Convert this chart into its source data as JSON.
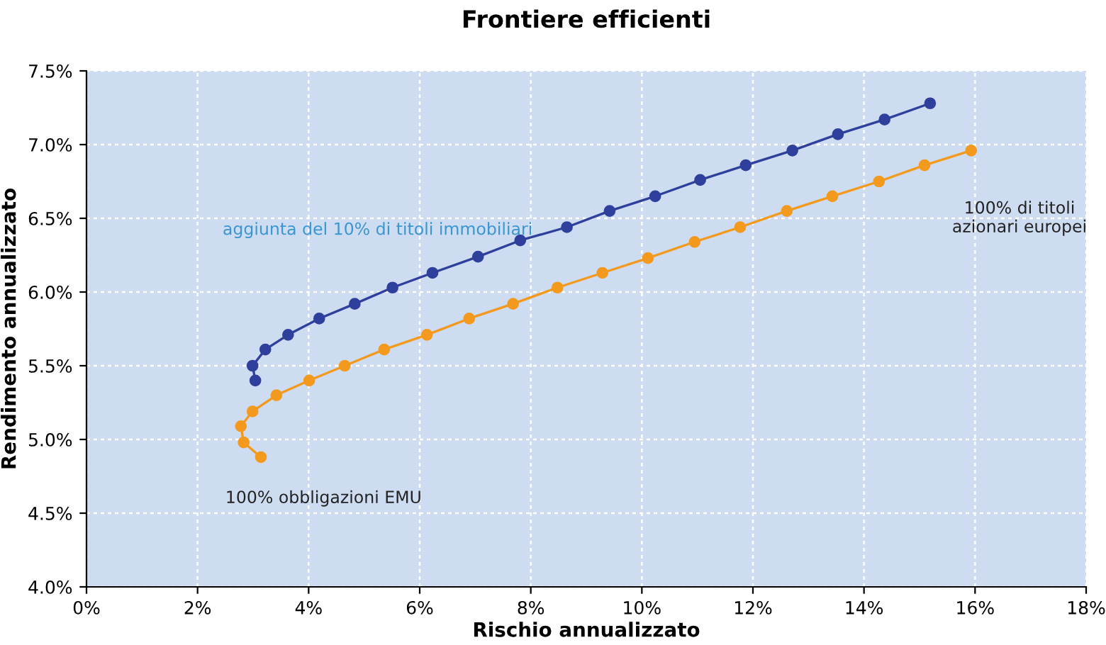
{
  "chart_data": {
    "type": "line",
    "title": "Frontiere efficienti",
    "xlabel": "Rischio annualizzato",
    "ylabel": "Rendimento annualizzato",
    "xlim": [
      0,
      18
    ],
    "xticks": [
      {
        "value": 0,
        "label": "0%"
      },
      {
        "value": 2,
        "label": "2%"
      },
      {
        "value": 4,
        "label": "4%"
      },
      {
        "value": 6,
        "label": "6%"
      },
      {
        "value": 8,
        "label": "8%"
      },
      {
        "value": 10,
        "label": "10%"
      },
      {
        "value": 12,
        "label": "12%"
      },
      {
        "value": 14,
        "label": "14%"
      },
      {
        "value": 16,
        "label": "16%"
      },
      {
        "value": 18,
        "label": "18%"
      }
    ],
    "ylim": [
      4,
      7.5
    ],
    "yticks": [
      {
        "value": 4,
        "label": "4.0%"
      },
      {
        "value": 4.5,
        "label": "4.5%"
      },
      {
        "value": 5,
        "label": "5.0%"
      },
      {
        "value": 5.5,
        "label": "5.5%"
      },
      {
        "value": 6,
        "label": "6.0%"
      },
      {
        "value": 6.5,
        "label": "6.5%"
      },
      {
        "value": 7,
        "label": "7.0%"
      },
      {
        "value": 7.5,
        "label": "7.5%"
      }
    ],
    "grid": true,
    "marker": "circle",
    "line_style": "solid",
    "series": [
      {
        "color": "#2e3f9c",
        "x": [
          3.04,
          2.99,
          3.22,
          3.63,
          4.19,
          4.83,
          5.51,
          6.23,
          7.05,
          7.81,
          8.65,
          9.42,
          10.24,
          11.05,
          11.87,
          12.71,
          13.53,
          14.37,
          15.19
        ],
        "values": [
          5.4,
          5.5,
          5.61,
          5.71,
          5.82,
          5.92,
          6.03,
          6.13,
          6.24,
          6.35,
          6.44,
          6.55,
          6.65,
          6.76,
          6.86,
          6.96,
          7.07,
          7.17,
          7.28
        ]
      },
      {
        "color": "#f39a1e",
        "x": [
          3.14,
          2.83,
          2.78,
          2.99,
          3.42,
          4.01,
          4.65,
          5.36,
          6.13,
          6.89,
          7.68,
          8.48,
          9.29,
          10.11,
          10.95,
          11.77,
          12.61,
          13.43,
          14.27,
          15.09,
          15.93
        ],
        "values": [
          4.88,
          4.98,
          5.09,
          5.19,
          5.3,
          5.4,
          5.5,
          5.61,
          5.71,
          5.82,
          5.92,
          6.03,
          6.13,
          6.23,
          6.34,
          6.44,
          6.55,
          6.65,
          6.75,
          6.86,
          6.96
        ]
      }
    ],
    "annotations": [
      "aggiunta del 10% di titoli immobiliari",
      "100% obbligazioni EMU",
      "100% di titoli\nazionari europei"
    ]
  }
}
